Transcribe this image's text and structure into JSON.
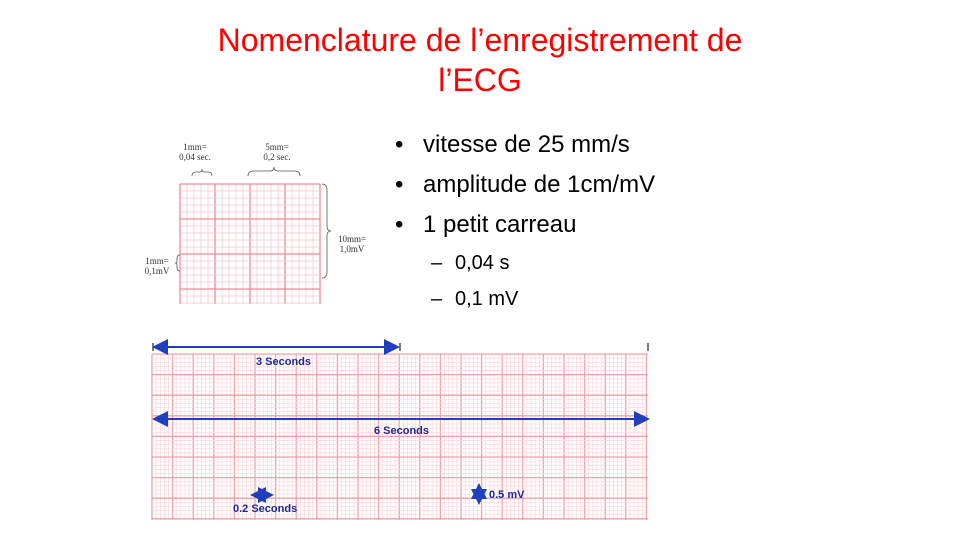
{
  "slide": {
    "title_line1": "Nomenclature de l’enregistrement de",
    "title_line2": "l’ECG"
  },
  "bullets": [
    {
      "text": "vitesse de 25 mm/s",
      "level": 1
    },
    {
      "text": "amplitude de 1cm/mV",
      "level": 1
    },
    {
      "text": "1 petit carreau",
      "level": 1
    },
    {
      "text": "0,04 s",
      "level": 2
    },
    {
      "text": "0,1 mV",
      "level": 2
    }
  ],
  "grid_figure": {
    "label_1mm_time_a": "1mm=",
    "label_1mm_time_b": "0,04 sec.",
    "label_5mm_a": "5mm=",
    "label_5mm_b": "0,2 sec.",
    "label_10mm_a": "10mm=",
    "label_10mm_b": "1,0mV",
    "label_1mm_amp_a": "1mm=",
    "label_1mm_amp_b": "0,1mV",
    "colors": {
      "major": "#f08a94",
      "minor": "#f8c4c9"
    }
  },
  "ecg_strip": {
    "label_3s": "3 Seconds",
    "label_6s": "6 Seconds",
    "label_02s": "0.2 Seconds",
    "label_05mv": "0.5 mV",
    "colors": {
      "major": "#f2a0a8",
      "minor": "#fbd6da",
      "arrow": "#1f3fbf",
      "text": "#1a2a9a"
    }
  }
}
